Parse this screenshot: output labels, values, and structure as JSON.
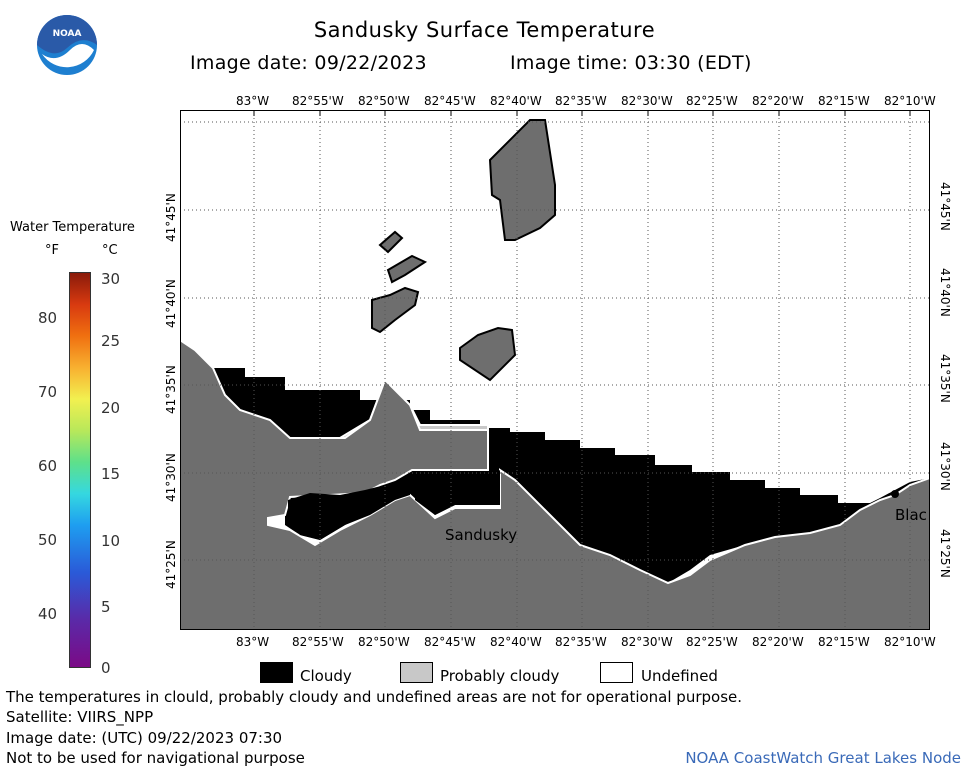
{
  "header": {
    "title": "Sandusky Surface Temperature",
    "image_date": "Image date: 09/22/2023",
    "image_time": "Image time: 03:30 (EDT)"
  },
  "logo": {
    "text": "NOAA",
    "icon": "noaa-logo-icon",
    "colors": {
      "outer": "#1e7fd0",
      "wave": "#ffffff",
      "bird": "#2a5aa8"
    }
  },
  "legend": {
    "title": "Water Temperature",
    "unit_f": "°F",
    "unit_c": "°C",
    "fahrenheit_ticks": [
      "80",
      "70",
      "60",
      "50",
      "40"
    ],
    "celsius_ticks": [
      "30",
      "25",
      "20",
      "15",
      "10",
      "5",
      "0"
    ],
    "categories": [
      {
        "label": "Cloudy",
        "color": "#000000"
      },
      {
        "label": "Probably cloudy",
        "color": "#c8c8c8"
      },
      {
        "label": "Undefined",
        "color": "#ffffff"
      }
    ]
  },
  "map": {
    "lon_labels": [
      "83°W",
      "82°55'W",
      "82°50'W",
      "82°45'W",
      "82°40'W",
      "82°35'W",
      "82°30'W",
      "82°25'W",
      "82°20'W",
      "82°15'W",
      "82°10'W"
    ],
    "lat_labels": [
      "41°45'N",
      "41°40'N",
      "41°35'N",
      "41°30'N",
      "41°25'N"
    ],
    "place_labels": {
      "sandusky": "Sandusky",
      "bluff": "Blac"
    },
    "colors": {
      "land": "#6e6e6e",
      "cloud": "#000000",
      "probably_cloudy": "#c8c8c8",
      "grid": "#555555"
    }
  },
  "footer": {
    "note": "The temperatures in clould, probably cloudy and undefined areas are not for operational purpose.",
    "satellite": "Satellite: VIIRS_NPP",
    "utc_date": "Image date: (UTC) 09/22/2023  07:30",
    "nav_warning": "Not to be used for navigational purpose",
    "credit": "NOAA CoastWatch Great Lakes Node"
  }
}
